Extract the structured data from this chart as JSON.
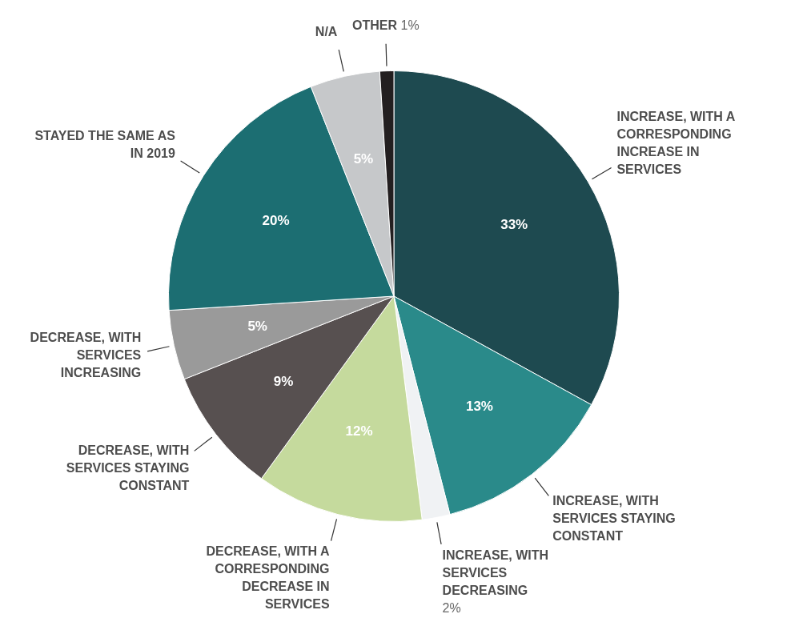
{
  "chart_data": {
    "type": "pie",
    "categories": [
      "INCREASE, WITH A CORRESPONDING INCREASE IN SERVICES",
      "INCREASE, WITH SERVICES STAYING CONSTANT",
      "INCREASE, WITH SERVICES DECREASING",
      "DECREASE, WITH A CORRESPONDING DECREASE IN SERVICES",
      "DECREASE, WITH SERVICES STAYING CONSTANT",
      "DECREASE, WITH SERVICES INCREASING",
      "STAYED THE SAME AS IN 2019",
      "N/A",
      "OTHER"
    ],
    "values": [
      33,
      13,
      2,
      12,
      9,
      5,
      20,
      5,
      1
    ],
    "colors": [
      "#1e4a50",
      "#2a8a8a",
      "#f0f2f4",
      "#c5da9d",
      "#575050",
      "#9a9a9a",
      "#1c6e72",
      "#c6c8ca",
      "#231f20"
    ],
    "value_labels": [
      "33%",
      "13%",
      "2%",
      "12%",
      "9%",
      "5%",
      "20%",
      "5%",
      "1%"
    ],
    "legend": false
  }
}
